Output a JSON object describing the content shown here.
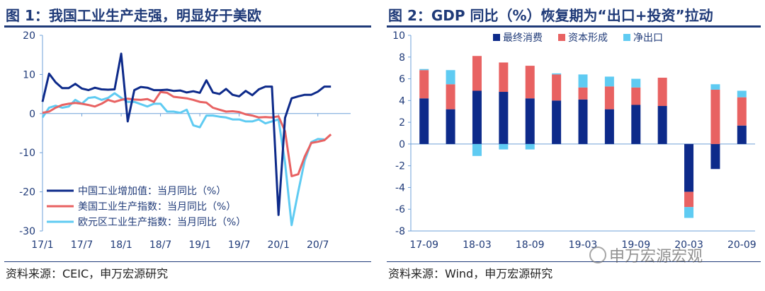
{
  "left_panel": {
    "title": "图 1：我国工业生产走强，明显好于美欧",
    "source": "资料来源：CEIC，申万宏源研究"
  },
  "right_panel": {
    "title": "图 2：GDP 同比（%）恢复期为“出口+投资”拉动",
    "source": "资料来源：Wind，申万宏源研究"
  },
  "watermark": "申万宏源宏观",
  "colors": {
    "dark_blue": "#0d2a8a",
    "red": "#e86262",
    "light_blue": "#5fcbf2",
    "title_blue": "#1f3a78"
  },
  "chart_data": [
    {
      "type": "line",
      "ylim": [
        -30,
        20
      ],
      "yticks": [
        20,
        10,
        0,
        -10,
        -20,
        -30
      ],
      "x_tick_labels": [
        "17/1",
        "17/7",
        "18/1",
        "18/7",
        "19/1",
        "19/7",
        "20/1",
        "20/7"
      ],
      "x_tick_months": [
        0,
        6,
        12,
        18,
        24,
        30,
        36,
        42
      ],
      "x_range_months": [
        0,
        47
      ],
      "series": [
        {
          "name": "中国工业增加值：当月同比（%）",
          "color": "#0d2a8a",
          "points": [
            [
              0,
              3
            ],
            [
              1,
              10.2
            ],
            [
              2,
              8
            ],
            [
              3,
              6.5
            ],
            [
              4,
              6.5
            ],
            [
              5,
              7.6
            ],
            [
              6,
              6.4
            ],
            [
              7,
              6
            ],
            [
              8,
              6.6
            ],
            [
              9,
              6.2
            ],
            [
              10,
              6.1
            ],
            [
              11,
              6.2
            ],
            [
              12,
              15.3
            ],
            [
              13,
              -2
            ],
            [
              14,
              6
            ],
            [
              15,
              6.8
            ],
            [
              16,
              6.6
            ],
            [
              17,
              6
            ],
            [
              18,
              6
            ],
            [
              19,
              6.1
            ],
            [
              20,
              5.8
            ],
            [
              21,
              5.9
            ],
            [
              22,
              5.4
            ],
            [
              23,
              5.7
            ],
            [
              24,
              5.3
            ],
            [
              25,
              8.5
            ],
            [
              26,
              5.4
            ],
            [
              27,
              5
            ],
            [
              28,
              6.3
            ],
            [
              29,
              4.8
            ],
            [
              30,
              4.4
            ],
            [
              31,
              5.8
            ],
            [
              32,
              4.7
            ],
            [
              33,
              6.2
            ],
            [
              34,
              6.9
            ],
            [
              35,
              6.9
            ],
            [
              36,
              -25.9
            ],
            [
              37,
              -1.1
            ],
            [
              38,
              3.9
            ],
            [
              39,
              4.4
            ],
            [
              40,
              4.8
            ],
            [
              41,
              4.8
            ],
            [
              42,
              5.6
            ],
            [
              43,
              6.9
            ],
            [
              44,
              6.9
            ]
          ]
        },
        {
          "name": "美国工业生产指数：当月同比（%）",
          "color": "#e86262",
          "points": [
            [
              0,
              0.2
            ],
            [
              1,
              0.5
            ],
            [
              2,
              1.5
            ],
            [
              3,
              2.2
            ],
            [
              4,
              2.5
            ],
            [
              5,
              2.7
            ],
            [
              6,
              2.5
            ],
            [
              7,
              2.2
            ],
            [
              8,
              1.8
            ],
            [
              9,
              2.5
            ],
            [
              10,
              3.5
            ],
            [
              11,
              3
            ],
            [
              12,
              3.5
            ],
            [
              13,
              3.8
            ],
            [
              14,
              3.6
            ],
            [
              15,
              3.5
            ],
            [
              16,
              3.7
            ],
            [
              17,
              3
            ],
            [
              18,
              5.5
            ],
            [
              19,
              5.3
            ],
            [
              20,
              4.3
            ],
            [
              21,
              4.1
            ],
            [
              22,
              3.9
            ],
            [
              23,
              3.5
            ],
            [
              24,
              3
            ],
            [
              25,
              2.8
            ],
            [
              26,
              1.5
            ],
            [
              27,
              1
            ],
            [
              28,
              0.5
            ],
            [
              29,
              0.6
            ],
            [
              30,
              0.4
            ],
            [
              31,
              -0.2
            ],
            [
              32,
              -0.5
            ],
            [
              33,
              -1
            ],
            [
              34,
              -0.9
            ],
            [
              35,
              -1
            ],
            [
              36,
              -0.7
            ],
            [
              37,
              -4.5
            ],
            [
              38,
              -16
            ],
            [
              39,
              -15.5
            ],
            [
              40,
              -11
            ],
            [
              41,
              -7.5
            ],
            [
              42,
              -7.2
            ],
            [
              43,
              -6.8
            ],
            [
              44,
              -5.3
            ]
          ]
        },
        {
          "name": "欧元区工业生产指数：当月同比（%）",
          "color": "#5fcbf2",
          "points": [
            [
              0,
              -1
            ],
            [
              1,
              1.5
            ],
            [
              2,
              2
            ],
            [
              3,
              1.5
            ],
            [
              4,
              1.8
            ],
            [
              5,
              3.5
            ],
            [
              6,
              2.5
            ],
            [
              7,
              4
            ],
            [
              8,
              4.2
            ],
            [
              9,
              3.5
            ],
            [
              10,
              4
            ],
            [
              11,
              5.2
            ],
            [
              12,
              4
            ],
            [
              13,
              3
            ],
            [
              14,
              3
            ],
            [
              15,
              2.4
            ],
            [
              16,
              1.8
            ],
            [
              17,
              2.5
            ],
            [
              18,
              2.5
            ],
            [
              19,
              0.5
            ],
            [
              20,
              0.5
            ],
            [
              21,
              0.2
            ],
            [
              22,
              1
            ],
            [
              23,
              -3
            ],
            [
              24,
              -3.5
            ],
            [
              25,
              -0.5
            ],
            [
              26,
              -0.5
            ],
            [
              27,
              -0.8
            ],
            [
              28,
              -1
            ],
            [
              29,
              -1.5
            ],
            [
              30,
              -1.5
            ],
            [
              31,
              -2
            ],
            [
              32,
              -2
            ],
            [
              33,
              -1.5
            ],
            [
              34,
              -2.5
            ],
            [
              35,
              -2
            ],
            [
              36,
              -1.5
            ],
            [
              37,
              -12.5
            ],
            [
              38,
              -28.5
            ],
            [
              39,
              -20
            ],
            [
              40,
              -12
            ],
            [
              41,
              -7.3
            ],
            [
              42,
              -6.5
            ],
            [
              43,
              -6.6
            ]
          ]
        }
      ]
    },
    {
      "type": "bar",
      "stacked": true,
      "ylim": [
        -8,
        10
      ],
      "yticks": [
        10,
        8,
        6,
        4,
        2,
        0,
        -2,
        -4,
        -6,
        -8
      ],
      "x_tick_labels": [
        "17-09",
        "18-03",
        "18-09",
        "19-03",
        "19-09",
        "20-03",
        "20-09"
      ],
      "categories": [
        "17-09",
        "17-12",
        "18-03",
        "18-06",
        "18-09",
        "18-12",
        "19-03",
        "19-06",
        "19-09",
        "19-12",
        "20-03",
        "20-06",
        "20-09"
      ],
      "series": [
        {
          "name": "最终消费",
          "color": "#0d2a8a",
          "values": [
            4.2,
            3.2,
            4.9,
            4.8,
            4.2,
            4,
            4.1,
            3.2,
            3.6,
            3.5,
            -4.4,
            -2.3,
            1.7
          ]
        },
        {
          "name": "资本形成",
          "color": "#e86262",
          "values": [
            2.6,
            2.3,
            3.2,
            2.7,
            3,
            2.4,
            1.1,
            2.1,
            1.6,
            2.6,
            -1.4,
            5,
            2.6
          ]
        },
        {
          "name": "净出口",
          "color": "#5fcbf2",
          "values": [
            0.1,
            1.3,
            -1.1,
            -0.5,
            -0.5,
            0.1,
            1.2,
            0.9,
            0.8,
            0,
            -1,
            0.5,
            0.6
          ]
        }
      ]
    }
  ]
}
